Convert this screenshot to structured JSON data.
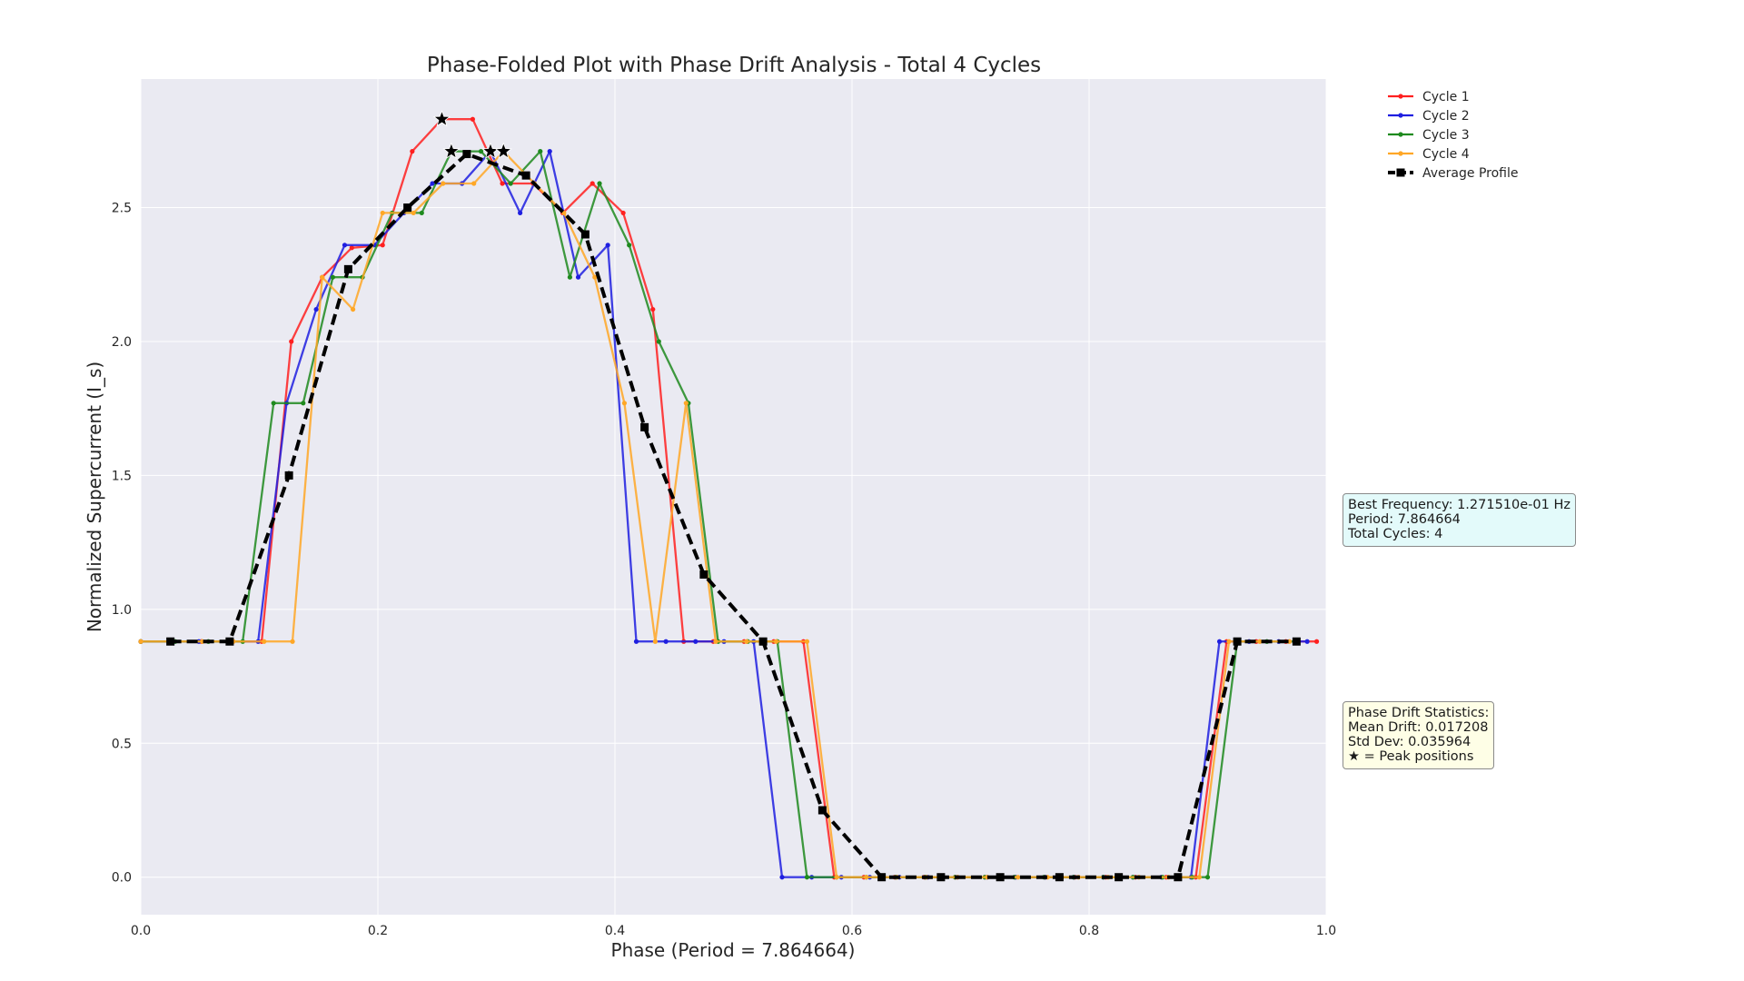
{
  "chart_data": {
    "type": "line",
    "title": "Phase-Folded Plot with Phase Drift Analysis - Total 4 Cycles",
    "xlabel": "Phase (Period = 7.864664)",
    "ylabel": "Normalized Supercurrent (I_s)",
    "xlim": [
      0.0,
      1.0
    ],
    "ylim": [
      -0.14,
      2.98
    ],
    "xticks": [
      "0.0",
      "0.2",
      "0.4",
      "0.6",
      "0.8",
      "1.0"
    ],
    "xtick_values": [
      0.0,
      0.2,
      0.4,
      0.6,
      0.8,
      1.0
    ],
    "yticks": [
      "0.0",
      "0.5",
      "1.0",
      "1.5",
      "2.0",
      "2.5"
    ],
    "ytick_values": [
      0.0,
      0.5,
      1.0,
      1.5,
      2.0,
      2.5
    ],
    "grid": true,
    "legend_position": "upper-right-outside",
    "series": [
      {
        "name": "Cycle 1",
        "color": "#ff2020",
        "style": "solid",
        "marker": "dot",
        "x": [
          0.0,
          0.025,
          0.051,
          0.076,
          0.102,
          0.127,
          0.153,
          0.178,
          0.204,
          0.229,
          0.254,
          0.28,
          0.305,
          0.331,
          0.356,
          0.381,
          0.407,
          0.432,
          0.458,
          0.483,
          0.509,
          0.534,
          0.559,
          0.585,
          0.61,
          0.636,
          0.661,
          0.687,
          0.712,
          0.738,
          0.763,
          0.788,
          0.814,
          0.839,
          0.865,
          0.89,
          0.916,
          0.941,
          0.966,
          0.992
        ],
        "y": [
          0.88,
          0.88,
          0.88,
          0.88,
          0.88,
          2.0,
          2.24,
          2.35,
          2.36,
          2.71,
          2.83,
          2.83,
          2.59,
          2.59,
          2.48,
          2.59,
          2.48,
          2.12,
          0.88,
          0.88,
          0.88,
          0.88,
          0.88,
          0.0,
          0.0,
          0.0,
          0.0,
          0.0,
          0.0,
          0.0,
          0.0,
          0.0,
          0.0,
          0.0,
          0.0,
          0.0,
          0.88,
          0.88,
          0.88,
          0.88
        ]
      },
      {
        "name": "Cycle 2",
        "color": "#1f1fe0",
        "style": "solid",
        "marker": "dot",
        "x": [
          0.0,
          0.025,
          0.049,
          0.074,
          0.099,
          0.123,
          0.148,
          0.172,
          0.197,
          0.222,
          0.246,
          0.271,
          0.295,
          0.32,
          0.345,
          0.369,
          0.394,
          0.418,
          0.443,
          0.468,
          0.492,
          0.517,
          0.541,
          0.566,
          0.591,
          0.615,
          0.64,
          0.664,
          0.689,
          0.714,
          0.738,
          0.763,
          0.787,
          0.812,
          0.837,
          0.861,
          0.886,
          0.91,
          0.935,
          0.96,
          0.984
        ],
        "y": [
          0.88,
          0.88,
          0.88,
          0.88,
          0.88,
          1.77,
          2.12,
          2.36,
          2.36,
          2.48,
          2.59,
          2.59,
          2.71,
          2.48,
          2.71,
          2.24,
          2.36,
          0.88,
          0.88,
          0.88,
          0.88,
          0.88,
          0.0,
          0.0,
          0.0,
          0.0,
          0.0,
          0.0,
          0.0,
          0.0,
          0.0,
          0.0,
          0.0,
          0.0,
          0.0,
          0.0,
          0.0,
          0.88,
          0.88,
          0.88,
          0.88
        ]
      },
      {
        "name": "Cycle 3",
        "color": "#1e8a1e",
        "style": "solid",
        "marker": "dot",
        "x": [
          0.0,
          0.029,
          0.057,
          0.086,
          0.112,
          0.137,
          0.162,
          0.187,
          0.212,
          0.237,
          0.262,
          0.287,
          0.312,
          0.337,
          0.362,
          0.387,
          0.412,
          0.437,
          0.462,
          0.487,
          0.512,
          0.537,
          0.562,
          0.587,
          0.612,
          0.637,
          0.662,
          0.687,
          0.712,
          0.737,
          0.762,
          0.787,
          0.812,
          0.837,
          0.862,
          0.887,
          0.9,
          0.925,
          0.95,
          0.975
        ],
        "y": [
          0.88,
          0.88,
          0.88,
          0.88,
          1.77,
          1.77,
          2.24,
          2.24,
          2.48,
          2.48,
          2.71,
          2.71,
          2.59,
          2.71,
          2.24,
          2.59,
          2.36,
          2.0,
          1.77,
          0.88,
          0.88,
          0.88,
          0.0,
          0.0,
          0.0,
          0.0,
          0.0,
          0.0,
          0.0,
          0.0,
          0.0,
          0.0,
          0.0,
          0.0,
          0.0,
          0.0,
          0.0,
          0.88,
          0.88,
          0.88
        ]
      },
      {
        "name": "Cycle 4",
        "color": "#ffa726",
        "style": "solid",
        "marker": "dot",
        "x": [
          0.0,
          0.026,
          0.052,
          0.078,
          0.104,
          0.128,
          0.153,
          0.179,
          0.204,
          0.23,
          0.255,
          0.281,
          0.306,
          0.332,
          0.357,
          0.383,
          0.408,
          0.434,
          0.46,
          0.485,
          0.511,
          0.536,
          0.562,
          0.587,
          0.612,
          0.638,
          0.663,
          0.689,
          0.714,
          0.74,
          0.765,
          0.791,
          0.816,
          0.842,
          0.867,
          0.893,
          0.918,
          0.944,
          0.969
        ],
        "y": [
          0.88,
          0.88,
          0.88,
          0.88,
          0.88,
          0.88,
          2.24,
          2.12,
          2.48,
          2.48,
          2.59,
          2.59,
          2.71,
          2.59,
          2.48,
          2.24,
          1.77,
          0.88,
          1.77,
          0.88,
          0.88,
          0.88,
          0.88,
          0.0,
          0.0,
          0.0,
          0.0,
          0.0,
          0.0,
          0.0,
          0.0,
          0.0,
          0.0,
          0.0,
          0.0,
          0.0,
          0.88,
          0.88,
          0.88
        ]
      },
      {
        "name": "Average Profile",
        "color": "#000000",
        "style": "dashed",
        "marker": "square",
        "x": [
          0.025,
          0.075,
          0.125,
          0.175,
          0.225,
          0.275,
          0.325,
          0.375,
          0.425,
          0.475,
          0.525,
          0.575,
          0.625,
          0.675,
          0.725,
          0.775,
          0.825,
          0.875,
          0.925,
          0.975
        ],
        "y": [
          0.88,
          0.88,
          1.5,
          2.27,
          2.5,
          2.7,
          2.62,
          2.4,
          1.68,
          1.13,
          0.88,
          0.25,
          0.0,
          0.0,
          0.0,
          0.0,
          0.0,
          0.0,
          0.88,
          0.88
        ]
      }
    ],
    "peaks": [
      {
        "series": "Cycle 1",
        "x": 0.254,
        "y": 2.83
      },
      {
        "series": "Cycle 2",
        "x": 0.295,
        "y": 2.71
      },
      {
        "series": "Cycle 3",
        "x": 0.262,
        "y": 2.71
      },
      {
        "series": "Cycle 4",
        "x": 0.306,
        "y": 2.71
      }
    ]
  },
  "info": {
    "frequency_lines": "Best Frequency: 1.271510e-01 Hz\nPeriod: 7.864664\nTotal Cycles: 4",
    "drift_lines": "Phase Drift Statistics:\nMean Drift: 0.017208\nStd Dev: 0.035964\n★ = Peak positions"
  },
  "colors": {
    "plot_background": "#eaeaf2",
    "grid": "#ffffff",
    "frequency_box": "#e3fafa",
    "drift_box": "#fefee6"
  }
}
